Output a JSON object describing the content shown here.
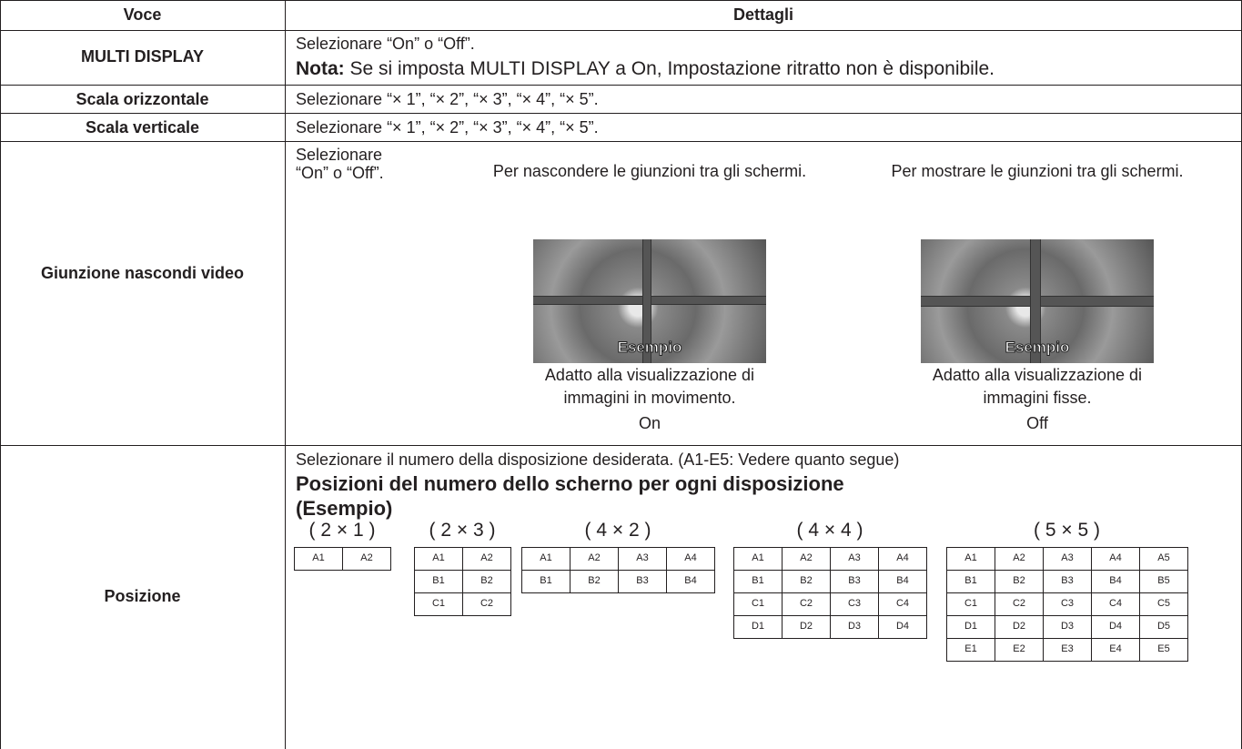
{
  "table": {
    "header": {
      "item": "Voce",
      "details": "Dettagli"
    },
    "multi_display": {
      "item": "MULTI DISPLAY",
      "line": "Selezionare “On” o “Off”.",
      "note_label": "Nota:",
      "note": "Se si imposta MULTI DISPLAY a On, Impostazione ritratto non è disponibile."
    },
    "scala_orizzontale": {
      "item": "Scala orizzontale",
      "line": "Selezionare “× 1”, “× 2”, “× 3”, “× 4”, “× 5”."
    },
    "scala_verticale": {
      "item": "Scala verticale",
      "line": "Selezionare “× 1”, “× 2”, “× 3”, “× 4”, “× 5”."
    },
    "giunzione": {
      "item": "Giunzione nascondi video",
      "lines": [
        "Selezionare",
        "“On” o “Off”."
      ],
      "panels": [
        {
          "caption": "Per nascondere le giunzioni tra gli schermi.",
          "image_label": "Esempio",
          "description": [
            "Adatto alla visualizzazione di",
            "immagini in movimento."
          ],
          "mode": "On"
        },
        {
          "caption": "Per mostrare le giunzioni tra gli schermi.",
          "image_label": "Esempio",
          "description": [
            "Adatto alla visualizzazione di",
            "immagini fisse."
          ],
          "mode": "Off"
        }
      ]
    },
    "posizione": {
      "item": "Posizione",
      "line": "Selezionare il numero della disposizione desiderata. (A1-E5: Vedere quanto segue)",
      "heading": "Posizioni del numero dello scherno per ogni disposizione",
      "subheading": "(Esempio)",
      "layouts": [
        {
          "label": "( 2 × 1 )",
          "cells": [
            [
              "A1",
              "A2"
            ]
          ]
        },
        {
          "label": "( 2 × 3 )",
          "cells": [
            [
              "A1",
              "A2"
            ],
            [
              "B1",
              "B2"
            ],
            [
              "C1",
              "C2"
            ]
          ]
        },
        {
          "label": "( 4 × 2 )",
          "cells": [
            [
              "A1",
              "A2",
              "A3",
              "A4"
            ],
            [
              "B1",
              "B2",
              "B3",
              "B4"
            ]
          ]
        },
        {
          "label": "( 4 × 4 )",
          "cells": [
            [
              "A1",
              "A2",
              "A3",
              "A4"
            ],
            [
              "B1",
              "B2",
              "B3",
              "B4"
            ],
            [
              "C1",
              "C2",
              "C3",
              "C4"
            ],
            [
              "D1",
              "D2",
              "D3",
              "D4"
            ]
          ]
        },
        {
          "label": "( 5 × 5 )",
          "cells": [
            [
              "A1",
              "A2",
              "A3",
              "A4",
              "A5"
            ],
            [
              "B1",
              "B2",
              "B3",
              "B4",
              "B5"
            ],
            [
              "C1",
              "C2",
              "C3",
              "C4",
              "C5"
            ],
            [
              "D1",
              "D2",
              "D3",
              "D4",
              "D5"
            ],
            [
              "E1",
              "E2",
              "E3",
              "E4",
              "E5"
            ]
          ]
        }
      ]
    }
  }
}
